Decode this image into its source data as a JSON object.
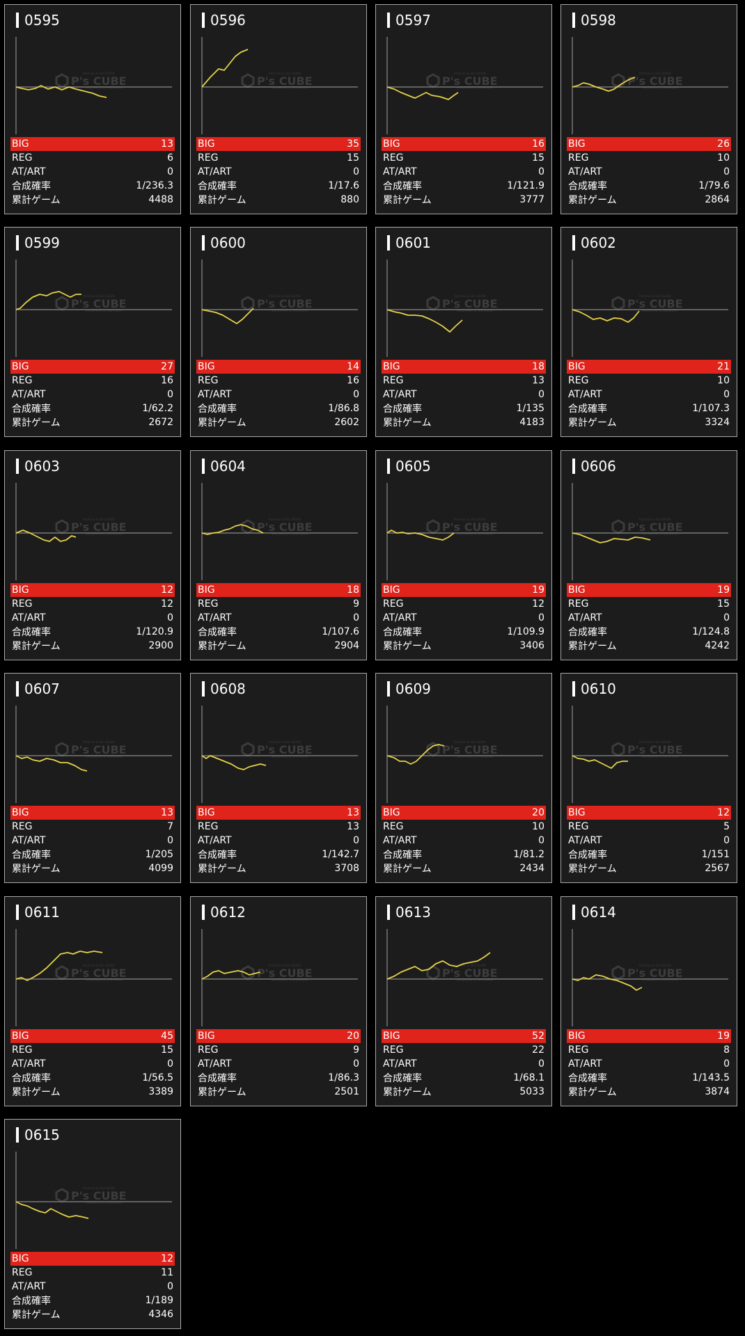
{
  "labels": {
    "big": "BIG",
    "reg": "REG",
    "art": "AT/ART",
    "rate": "合成確率",
    "games": "累計ゲーム"
  },
  "watermark": {
    "brand": "P's CUBE",
    "sub_top": "Pachinko & Slot SEVEN",
    "sub_bottom": "amusement & information"
  },
  "colors": {
    "line": "#e6d24a",
    "big_bg": "#e0231b",
    "axis": "#8c8c8c"
  },
  "machines": [
    {
      "id": "0595",
      "big": "13",
      "reg": "6",
      "art": "0",
      "rate": "1/236.3",
      "games": "4488",
      "graph": [
        [
          0,
          0
        ],
        [
          8,
          -2
        ],
        [
          18,
          -4
        ],
        [
          28,
          -2
        ],
        [
          36,
          2
        ],
        [
          46,
          -3
        ],
        [
          56,
          0
        ],
        [
          66,
          -4
        ],
        [
          76,
          0
        ],
        [
          86,
          -3
        ],
        [
          98,
          -6
        ],
        [
          110,
          -9
        ],
        [
          120,
          -13
        ],
        [
          130,
          -15
        ]
      ]
    },
    {
      "id": "0596",
      "big": "35",
      "reg": "15",
      "art": "0",
      "rate": "1/17.6",
      "games": "880",
      "graph": [
        [
          0,
          0
        ],
        [
          12,
          14
        ],
        [
          24,
          26
        ],
        [
          32,
          24
        ],
        [
          40,
          34
        ],
        [
          48,
          44
        ],
        [
          56,
          50
        ],
        [
          66,
          54
        ]
      ]
    },
    {
      "id": "0597",
      "big": "16",
      "reg": "15",
      "art": "0",
      "rate": "1/121.9",
      "games": "3777",
      "graph": [
        [
          0,
          0
        ],
        [
          10,
          -3
        ],
        [
          20,
          -8
        ],
        [
          30,
          -12
        ],
        [
          40,
          -16
        ],
        [
          48,
          -12
        ],
        [
          56,
          -8
        ],
        [
          64,
          -12
        ],
        [
          76,
          -14
        ],
        [
          88,
          -18
        ],
        [
          96,
          -12
        ],
        [
          102,
          -8
        ]
      ]
    },
    {
      "id": "0598",
      "big": "26",
      "reg": "10",
      "art": "0",
      "rate": "1/79.6",
      "games": "2864",
      "graph": [
        [
          0,
          0
        ],
        [
          8,
          2
        ],
        [
          16,
          6
        ],
        [
          24,
          4
        ],
        [
          34,
          0
        ],
        [
          44,
          -3
        ],
        [
          52,
          -6
        ],
        [
          60,
          -3
        ],
        [
          70,
          4
        ],
        [
          80,
          10
        ],
        [
          90,
          14
        ]
      ]
    },
    {
      "id": "0599",
      "big": "27",
      "reg": "16",
      "art": "0",
      "rate": "1/62.2",
      "games": "2672",
      "graph": [
        [
          0,
          0
        ],
        [
          6,
          2
        ],
        [
          14,
          10
        ],
        [
          24,
          18
        ],
        [
          34,
          22
        ],
        [
          44,
          20
        ],
        [
          52,
          24
        ],
        [
          62,
          26
        ],
        [
          70,
          22
        ],
        [
          78,
          18
        ],
        [
          86,
          22
        ],
        [
          94,
          22
        ]
      ]
    },
    {
      "id": "0600",
      "big": "14",
      "reg": "16",
      "art": "0",
      "rate": "1/86.8",
      "games": "2602",
      "graph": [
        [
          0,
          0
        ],
        [
          10,
          -2
        ],
        [
          20,
          -4
        ],
        [
          30,
          -8
        ],
        [
          40,
          -14
        ],
        [
          50,
          -20
        ],
        [
          58,
          -14
        ],
        [
          66,
          -6
        ],
        [
          74,
          2
        ]
      ]
    },
    {
      "id": "0601",
      "big": "18",
      "reg": "13",
      "art": "0",
      "rate": "1/135",
      "games": "4183",
      "graph": [
        [
          0,
          0
        ],
        [
          10,
          -3
        ],
        [
          20,
          -5
        ],
        [
          30,
          -8
        ],
        [
          40,
          -8
        ],
        [
          50,
          -9
        ],
        [
          60,
          -13
        ],
        [
          70,
          -18
        ],
        [
          80,
          -24
        ],
        [
          90,
          -32
        ],
        [
          98,
          -24
        ],
        [
          108,
          -15
        ]
      ]
    },
    {
      "id": "0602",
      "big": "21",
      "reg": "10",
      "art": "0",
      "rate": "1/107.3",
      "games": "3324",
      "graph": [
        [
          0,
          0
        ],
        [
          10,
          -3
        ],
        [
          20,
          -8
        ],
        [
          30,
          -14
        ],
        [
          40,
          -12
        ],
        [
          50,
          -16
        ],
        [
          60,
          -12
        ],
        [
          70,
          -13
        ],
        [
          80,
          -18
        ],
        [
          88,
          -12
        ],
        [
          96,
          -2
        ]
      ]
    },
    {
      "id": "0603",
      "big": "12",
      "reg": "12",
      "art": "0",
      "rate": "1/120.9",
      "games": "2900",
      "graph": [
        [
          0,
          0
        ],
        [
          10,
          4
        ],
        [
          20,
          0
        ],
        [
          30,
          -5
        ],
        [
          40,
          -10
        ],
        [
          48,
          -12
        ],
        [
          56,
          -6
        ],
        [
          64,
          -12
        ],
        [
          72,
          -10
        ],
        [
          80,
          -4
        ],
        [
          86,
          -6
        ]
      ]
    },
    {
      "id": "0604",
      "big": "18",
      "reg": "9",
      "art": "0",
      "rate": "1/107.6",
      "games": "2904",
      "graph": [
        [
          0,
          0
        ],
        [
          8,
          -2
        ],
        [
          16,
          0
        ],
        [
          24,
          1
        ],
        [
          32,
          4
        ],
        [
          40,
          6
        ],
        [
          48,
          10
        ],
        [
          56,
          12
        ],
        [
          64,
          10
        ],
        [
          72,
          6
        ],
        [
          80,
          4
        ],
        [
          88,
          0
        ]
      ]
    },
    {
      "id": "0605",
      "big": "19",
      "reg": "12",
      "art": "0",
      "rate": "1/109.9",
      "games": "3406",
      "graph": [
        [
          0,
          0
        ],
        [
          6,
          4
        ],
        [
          14,
          0
        ],
        [
          22,
          1
        ],
        [
          30,
          -1
        ],
        [
          40,
          0
        ],
        [
          50,
          -2
        ],
        [
          60,
          -6
        ],
        [
          70,
          -8
        ],
        [
          80,
          -10
        ],
        [
          88,
          -6
        ],
        [
          96,
          0
        ]
      ]
    },
    {
      "id": "0606",
      "big": "19",
      "reg": "15",
      "art": "0",
      "rate": "1/124.8",
      "games": "4242",
      "graph": [
        [
          0,
          0
        ],
        [
          10,
          -2
        ],
        [
          20,
          -6
        ],
        [
          30,
          -10
        ],
        [
          40,
          -14
        ],
        [
          50,
          -12
        ],
        [
          60,
          -8
        ],
        [
          70,
          -9
        ],
        [
          80,
          -10
        ],
        [
          90,
          -6
        ],
        [
          100,
          -7
        ],
        [
          112,
          -10
        ]
      ]
    },
    {
      "id": "0607",
      "big": "13",
      "reg": "7",
      "art": "0",
      "rate": "1/205",
      "games": "4099",
      "graph": [
        [
          0,
          0
        ],
        [
          8,
          -4
        ],
        [
          16,
          -2
        ],
        [
          24,
          -6
        ],
        [
          34,
          -8
        ],
        [
          44,
          -4
        ],
        [
          54,
          -6
        ],
        [
          64,
          -10
        ],
        [
          74,
          -10
        ],
        [
          84,
          -14
        ],
        [
          94,
          -20
        ],
        [
          102,
          -22
        ]
      ]
    },
    {
      "id": "0608",
      "big": "13",
      "reg": "13",
      "art": "0",
      "rate": "1/142.7",
      "games": "3708",
      "graph": [
        [
          0,
          0
        ],
        [
          6,
          -4
        ],
        [
          12,
          0
        ],
        [
          22,
          -4
        ],
        [
          32,
          -8
        ],
        [
          42,
          -12
        ],
        [
          52,
          -18
        ],
        [
          60,
          -20
        ],
        [
          68,
          -16
        ],
        [
          76,
          -14
        ],
        [
          84,
          -12
        ],
        [
          92,
          -14
        ]
      ]
    },
    {
      "id": "0609",
      "big": "20",
      "reg": "10",
      "art": "0",
      "rate": "1/81.2",
      "games": "2434",
      "graph": [
        [
          0,
          0
        ],
        [
          10,
          -3
        ],
        [
          18,
          -8
        ],
        [
          26,
          -8
        ],
        [
          34,
          -12
        ],
        [
          42,
          -8
        ],
        [
          50,
          0
        ],
        [
          58,
          8
        ],
        [
          66,
          14
        ],
        [
          74,
          16
        ],
        [
          82,
          14
        ]
      ]
    },
    {
      "id": "0610",
      "big": "12",
      "reg": "5",
      "art": "0",
      "rate": "1/151",
      "games": "2567",
      "graph": [
        [
          0,
          0
        ],
        [
          8,
          -4
        ],
        [
          16,
          -5
        ],
        [
          24,
          -8
        ],
        [
          32,
          -6
        ],
        [
          40,
          -10
        ],
        [
          48,
          -14
        ],
        [
          56,
          -18
        ],
        [
          64,
          -10
        ],
        [
          72,
          -8
        ],
        [
          80,
          -8
        ]
      ]
    },
    {
      "id": "0611",
      "big": "45",
      "reg": "15",
      "art": "0",
      "rate": "1/56.5",
      "games": "3389",
      "graph": [
        [
          0,
          0
        ],
        [
          8,
          2
        ],
        [
          16,
          -2
        ],
        [
          24,
          2
        ],
        [
          34,
          8
        ],
        [
          44,
          16
        ],
        [
          54,
          26
        ],
        [
          64,
          36
        ],
        [
          74,
          38
        ],
        [
          82,
          36
        ],
        [
          92,
          40
        ],
        [
          102,
          38
        ],
        [
          112,
          40
        ],
        [
          124,
          38
        ]
      ]
    },
    {
      "id": "0612",
      "big": "20",
      "reg": "9",
      "art": "0",
      "rate": "1/86.3",
      "games": "2501",
      "graph": [
        [
          0,
          0
        ],
        [
          8,
          4
        ],
        [
          16,
          10
        ],
        [
          24,
          12
        ],
        [
          32,
          8
        ],
        [
          42,
          10
        ],
        [
          52,
          12
        ],
        [
          60,
          10
        ],
        [
          68,
          6
        ],
        [
          76,
          8
        ],
        [
          84,
          10
        ]
      ]
    },
    {
      "id": "0613",
      "big": "52",
      "reg": "22",
      "art": "0",
      "rate": "1/68.1",
      "games": "5033",
      "graph": [
        [
          0,
          0
        ],
        [
          10,
          4
        ],
        [
          20,
          10
        ],
        [
          30,
          14
        ],
        [
          40,
          18
        ],
        [
          50,
          12
        ],
        [
          60,
          14
        ],
        [
          70,
          22
        ],
        [
          80,
          26
        ],
        [
          90,
          20
        ],
        [
          100,
          18
        ],
        [
          110,
          22
        ],
        [
          120,
          24
        ],
        [
          130,
          26
        ],
        [
          140,
          32
        ],
        [
          148,
          38
        ]
      ]
    },
    {
      "id": "0614",
      "big": "19",
      "reg": "8",
      "art": "0",
      "rate": "1/143.5",
      "games": "3874",
      "graph": [
        [
          0,
          0
        ],
        [
          8,
          -2
        ],
        [
          16,
          2
        ],
        [
          24,
          0
        ],
        [
          34,
          6
        ],
        [
          44,
          4
        ],
        [
          54,
          0
        ],
        [
          64,
          -2
        ],
        [
          74,
          -6
        ],
        [
          84,
          -10
        ],
        [
          92,
          -16
        ],
        [
          100,
          -12
        ]
      ]
    },
    {
      "id": "0615",
      "big": "12",
      "reg": "11",
      "art": "0",
      "rate": "1/189",
      "games": "4346",
      "graph": [
        [
          0,
          0
        ],
        [
          8,
          -4
        ],
        [
          16,
          -6
        ],
        [
          24,
          -10
        ],
        [
          34,
          -14
        ],
        [
          42,
          -16
        ],
        [
          50,
          -10
        ],
        [
          58,
          -14
        ],
        [
          66,
          -18
        ],
        [
          76,
          -22
        ],
        [
          86,
          -20
        ],
        [
          96,
          -22
        ],
        [
          104,
          -24
        ]
      ]
    }
  ]
}
